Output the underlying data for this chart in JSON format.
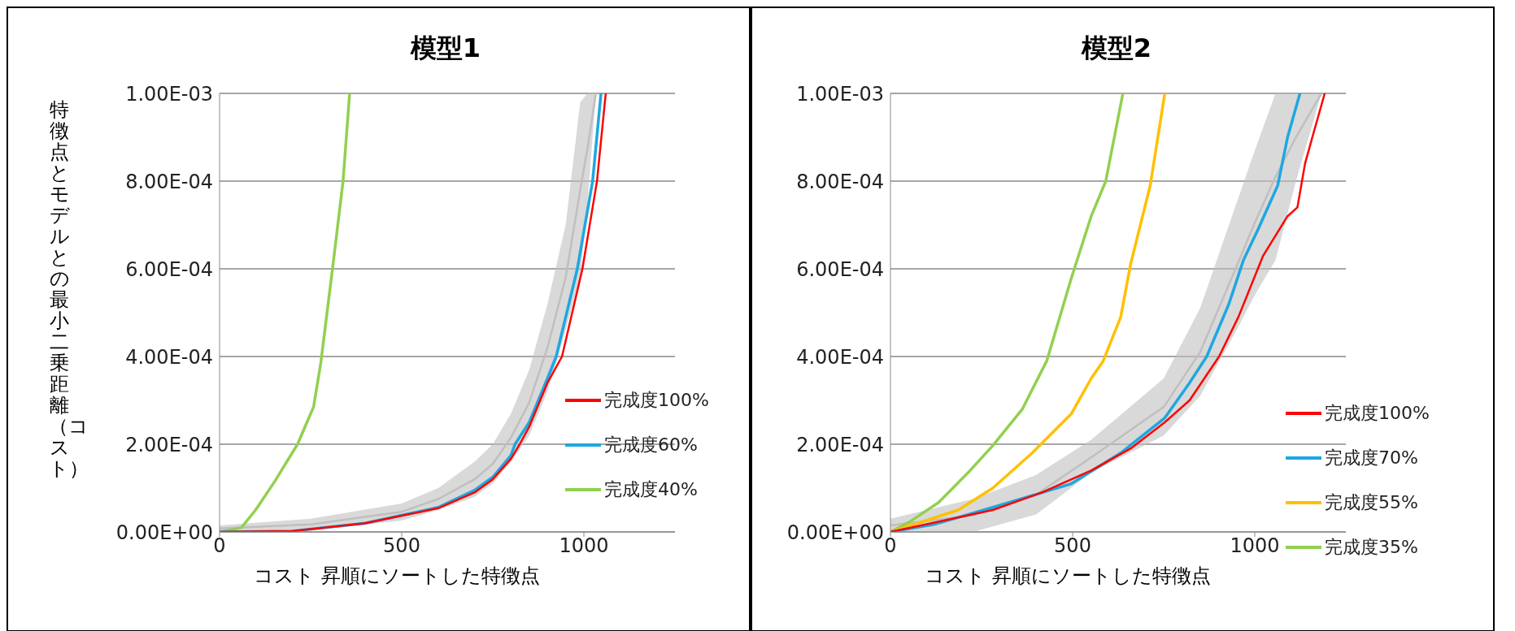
{
  "chart_data": [
    {
      "type": "line",
      "title": "模型1",
      "xlabel": "コスト 昇順にソートした特徴点",
      "ylabel": "特徴点とモデルとの最小二乗距離（コスト）",
      "xlim": [
        0,
        1250
      ],
      "xticks": [
        0,
        500,
        1000
      ],
      "ylim": [
        0,
        0.001
      ],
      "yticks": [
        {
          "value": 0,
          "label": "0.00E+00"
        },
        {
          "value": 0.0002,
          "label": "2.00E-04"
        },
        {
          "value": 0.0004,
          "label": "4.00E-04"
        },
        {
          "value": 0.0006,
          "label": "6.00E-04"
        },
        {
          "value": 0.0008,
          "label": "8.00E-04"
        },
        {
          "value": 0.001,
          "label": "1.00E-03"
        }
      ],
      "grid": "y",
      "legend": "right",
      "marker": "none",
      "line_style": "solid",
      "series": [
        {
          "type": "line",
          "color": "#bfbfbf",
          "x": [
            0,
            250,
            500,
            600,
            700,
            750,
            800,
            850,
            900,
            950,
            990,
            1010,
            1033
          ],
          "values": [
            8e-06,
            1.7e-05,
            4.6e-05,
            7.5e-05,
            0.00012,
            0.000155,
            0.000215,
            0.000295,
            0.00042,
            0.00058,
            0.00078,
            0.000875,
            0.001
          ],
          "lower": [
            0,
            3e-06,
            2.6e-05,
            5e-05,
            8e-05,
            0.00011,
            0.00016,
            0.00022,
            0.00032,
            0.00046,
            0.00058,
            0.00075,
            0.001
          ],
          "upper": [
            1.5e-05,
            3e-05,
            6.5e-05,
            0.0001,
            0.00016,
            0.0002,
            0.00027,
            0.00037,
            0.00052,
            0.0007,
            0.00098,
            0.001,
            0.001
          ]
        },
        {
          "name": "完成度100%",
          "color": "#ff0000",
          "x": [
            0,
            200,
            400,
            500,
            600,
            700,
            750,
            800,
            824,
            850,
            900,
            940,
            996,
            1036,
            1060
          ],
          "values": [
            0,
            2e-06,
            2e-05,
            3.7e-05,
            5.4e-05,
            9e-05,
            0.00012,
            0.000167,
            0.0002,
            0.00024,
            0.00034,
            0.0004,
            0.0006,
            0.0008,
            0.001
          ]
        },
        {
          "name": "完成度60%",
          "color": "#1ea7e1",
          "x": [
            0,
            200,
            400,
            500,
            600,
            700,
            750,
            800,
            811,
            850,
            900,
            924,
            982,
            1024,
            1047
          ],
          "values": [
            0,
            2e-06,
            2e-05,
            3.8e-05,
            5.6e-05,
            9.5e-05,
            0.000125,
            0.000175,
            0.0002,
            0.00025,
            0.00035,
            0.0004,
            0.0006,
            0.0008,
            0.001
          ]
        },
        {
          "name": "完成度40%",
          "color": "#92d050",
          "x": [
            0,
            60,
            99,
            152,
            214,
            258,
            278,
            310,
            339,
            357
          ],
          "values": [
            0,
            1e-05,
            5e-05,
            0.000116,
            0.0002,
            0.000285,
            0.000386,
            0.0006,
            0.0008,
            0.001
          ]
        }
      ]
    },
    {
      "type": "line",
      "title": "模型2",
      "xlabel": "コスト 昇順にソートした特徴点",
      "xlim": [
        0,
        1250
      ],
      "xticks": [
        0,
        500,
        1000
      ],
      "ylim": [
        0,
        0.001
      ],
      "yticks": [
        {
          "value": 0,
          "label": "0.00E+00"
        },
        {
          "value": 0.0002,
          "label": "2.00E-04"
        },
        {
          "value": 0.0004,
          "label": "4.00E-04"
        },
        {
          "value": 0.0006,
          "label": "6.00E-04"
        },
        {
          "value": 0.0008,
          "label": "8.00E-04"
        },
        {
          "value": 0.001,
          "label": "1.00E-03"
        }
      ],
      "grid": "y",
      "legend": "right",
      "marker": "none",
      "line_style": "solid",
      "series": [
        {
          "type": "line",
          "color": "#bfbfbf",
          "x": [
            0,
            200,
            227,
            400,
            551,
            750,
            850,
            950,
            1000,
            1057,
            1113,
            1183
          ],
          "values": [
            1.5e-05,
            3.5e-05,
            3.8e-05,
            8.5e-05,
            0.00017,
            0.000285,
            0.00041,
            0.000605,
            0.000705,
            0.00081,
            0.0009,
            0.001
          ],
          "lower": [
            0,
            0,
            0,
            4e-05,
            0.000135,
            0.00022,
            0.00031,
            0.00046,
            0.00054,
            0.00062,
            0.0008,
            0.001
          ],
          "upper": [
            3e-05,
            7e-05,
            7.5e-05,
            0.00013,
            0.00021,
            0.00035,
            0.00051,
            0.00075,
            0.00087,
            0.001,
            0.001,
            0.001
          ]
        },
        {
          "name": "完成度100%",
          "color": "#ff0000",
          "x": [
            0,
            281,
            416,
            551,
            659,
            753,
            821,
            902,
            955,
            1023,
            1090,
            1117,
            1138,
            1158,
            1192
          ],
          "values": [
            0,
            5e-05,
            9e-05,
            0.00014,
            0.00019,
            0.00025,
            0.0003,
            0.0004,
            0.00049,
            0.00063,
            0.00072,
            0.00074,
            0.00084,
            0.0009,
            0.001
          ]
        },
        {
          "name": "完成度70%",
          "color": "#1ea7e1",
          "x": [
            0,
            119,
            281,
            497,
            632,
            753,
            821,
            868,
            929,
            969,
            1009,
            1063,
            1090,
            1124
          ],
          "values": [
            0,
            1.7e-05,
            5.6e-05,
            0.00011,
            0.00018,
            0.00026,
            0.00034,
            0.0004,
            0.00052,
            0.00062,
            0.00069,
            0.00079,
            0.0009,
            0.001
          ]
        },
        {
          "name": "完成度55%",
          "color": "#ffc000",
          "x": [
            0,
            186,
            281,
            389,
            497,
            551,
            584,
            632,
            659,
            713,
            753
          ],
          "values": [
            0,
            5e-05,
            0.0001,
            0.00018,
            0.00027,
            0.00035,
            0.00039,
            0.00049,
            0.00061,
            0.00079,
            0.001
          ]
        },
        {
          "name": "完成度35%",
          "color": "#92d050",
          "x": [
            0,
            51,
            132,
            213,
            281,
            362,
            429,
            497,
            551,
            591,
            638
          ],
          "values": [
            0,
            2.2e-05,
            6.7e-05,
            0.000135,
            0.000197,
            0.00028,
            0.00039,
            0.00058,
            0.00072,
            0.0008,
            0.001
          ]
        }
      ]
    }
  ]
}
